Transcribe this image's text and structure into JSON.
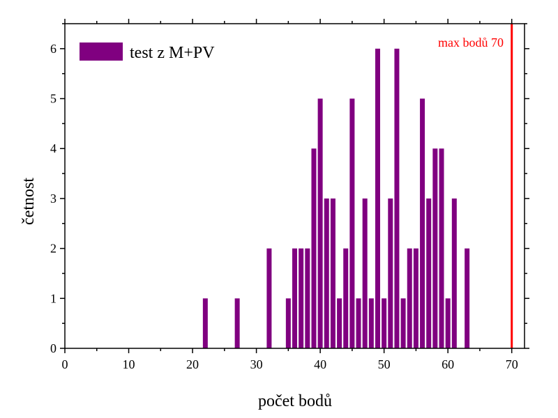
{
  "colors": {
    "bar": "#800080",
    "max_line": "#ff0000",
    "axis": "#000000",
    "background": "#ffffff"
  },
  "chart_data": {
    "type": "bar",
    "xlabel": "počet bodů",
    "ylabel": "četnost",
    "xlim": [
      0,
      72
    ],
    "ylim": [
      0,
      6.5
    ],
    "xticks": [
      0,
      10,
      20,
      30,
      40,
      50,
      60,
      70
    ],
    "yticks": [
      0,
      1,
      2,
      3,
      4,
      5,
      6
    ],
    "grid": false,
    "legend_position": "top-left",
    "series": [
      {
        "name": "test z M+PV",
        "x": [
          22,
          27,
          32,
          35,
          36,
          37,
          38,
          39,
          40,
          41,
          42,
          43,
          44,
          45,
          46,
          47,
          48,
          49,
          50,
          51,
          52,
          53,
          54,
          55,
          56,
          57,
          58,
          59,
          60,
          61,
          63
        ],
        "values": [
          1,
          1,
          2,
          1,
          2,
          2,
          2,
          4,
          5,
          3,
          3,
          1,
          2,
          5,
          1,
          3,
          1,
          6,
          1,
          3,
          6,
          1,
          2,
          2,
          5,
          3,
          4,
          4,
          1,
          3,
          2
        ]
      }
    ],
    "annotations": [
      {
        "type": "vline",
        "x": 70,
        "label": "max bodů 70"
      }
    ]
  }
}
